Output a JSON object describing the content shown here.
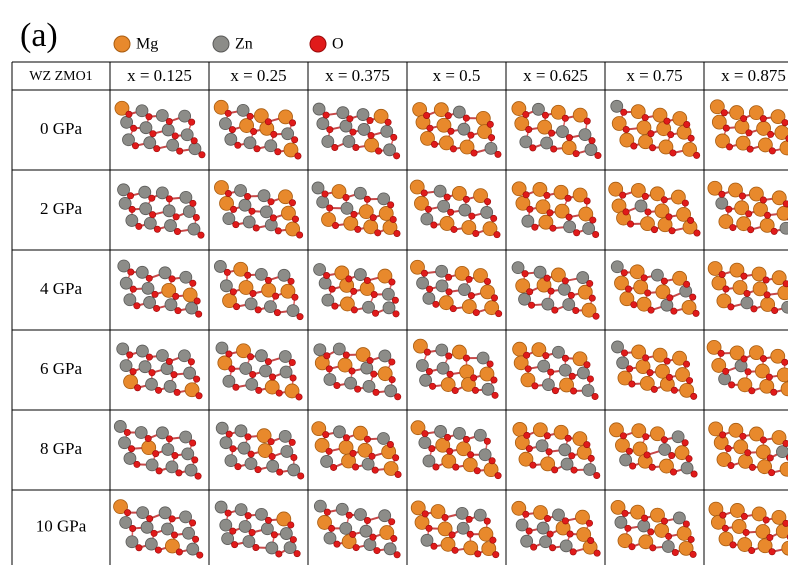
{
  "label": "(a)",
  "legend": [
    "Mg",
    "Zn",
    "O"
  ],
  "table": {
    "header": [
      "WZ ZMO1",
      "x = 0.125",
      "x = 0.25",
      "x = 0.375",
      "x = 0.5",
      "x = 0.625",
      "x = 0.75",
      "x = 0.875"
    ],
    "rows": [
      "0 GPa",
      "2 GPa",
      "4 GPa",
      "6 GPa",
      "8 GPa",
      "10 GPa"
    ]
  }
}
